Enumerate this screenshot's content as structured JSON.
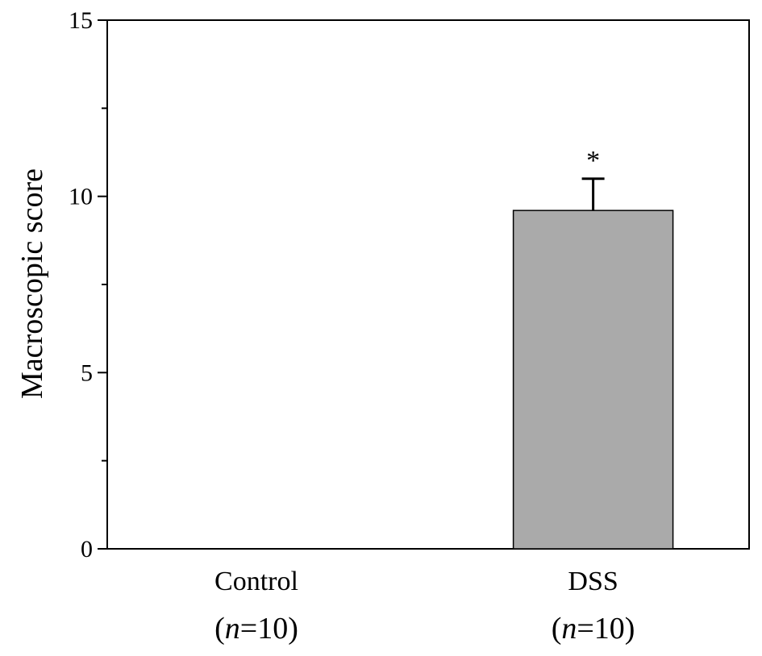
{
  "chart_data": {
    "type": "bar",
    "categories": [
      "Control",
      "DSS"
    ],
    "category_sublabels": [
      {
        "open": "(",
        "italic": "n",
        "rest": "=10)"
      },
      {
        "open": "(",
        "italic": "n",
        "rest": "=10)"
      }
    ],
    "values": [
      0,
      9.6
    ],
    "errors": [
      0,
      0.9
    ],
    "significance": [
      "",
      "*"
    ],
    "title": "",
    "xlabel": "",
    "ylabel": "Macroscopic score",
    "ylim": [
      0,
      15
    ],
    "yticks": [
      "0",
      "5",
      "10",
      "15"
    ],
    "minor_ticks": [
      2.5,
      7.5,
      12.5
    ],
    "grid": false,
    "bar_color": "#aaaaaa",
    "axis_color": "#000000"
  }
}
